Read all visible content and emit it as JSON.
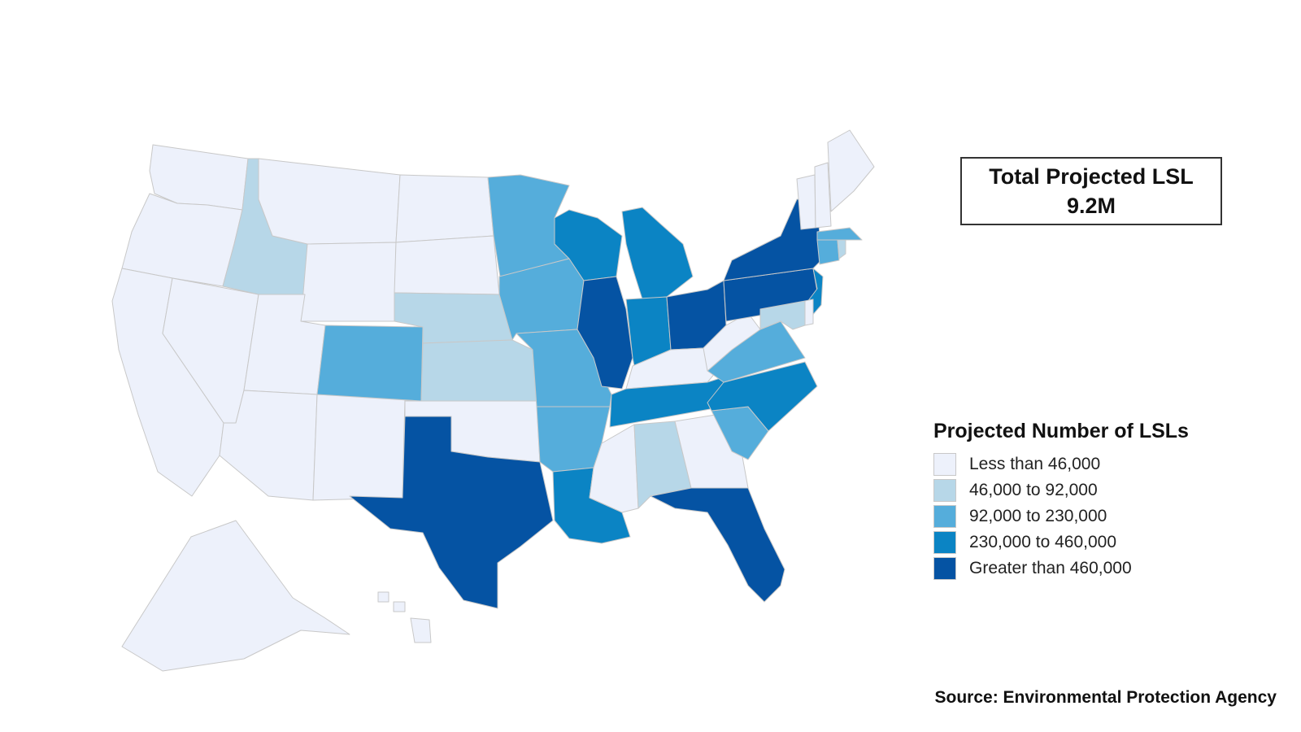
{
  "total_box": {
    "line1": "Total Projected LSL",
    "line2": "9.2M"
  },
  "legend": {
    "title": "Projected Number of LSLs",
    "items": [
      {
        "label": "Less than 46,000",
        "color": "#edf1fb"
      },
      {
        "label": "46,000 to 92,000",
        "color": "#b7d7e8"
      },
      {
        "label": "92,000 to 230,000",
        "color": "#55addb"
      },
      {
        "label": "230,000 to 460,000",
        "color": "#0b84c4"
      },
      {
        "label": "Greater than 460,000",
        "color": "#0553a3"
      }
    ]
  },
  "source": "Source: Environmental Protection Agency",
  "map_data": {
    "metric": "Projected Number of LSLs",
    "states": [
      {
        "state": "WA",
        "class": 0
      },
      {
        "state": "OR",
        "class": 0
      },
      {
        "state": "CA",
        "class": 0
      },
      {
        "state": "NV",
        "class": 0
      },
      {
        "state": "ID",
        "class": 1
      },
      {
        "state": "MT",
        "class": 0
      },
      {
        "state": "WY",
        "class": 0
      },
      {
        "state": "UT",
        "class": 0
      },
      {
        "state": "AZ",
        "class": 0
      },
      {
        "state": "NM",
        "class": 0
      },
      {
        "state": "CO",
        "class": 2
      },
      {
        "state": "ND",
        "class": 0
      },
      {
        "state": "SD",
        "class": 0
      },
      {
        "state": "NE",
        "class": 1
      },
      {
        "state": "KS",
        "class": 1
      },
      {
        "state": "OK",
        "class": 0
      },
      {
        "state": "TX",
        "class": 4
      },
      {
        "state": "MN",
        "class": 2
      },
      {
        "state": "IA",
        "class": 2
      },
      {
        "state": "MO",
        "class": 2
      },
      {
        "state": "AR",
        "class": 2
      },
      {
        "state": "LA",
        "class": 3
      },
      {
        "state": "WI",
        "class": 3
      },
      {
        "state": "IL",
        "class": 4
      },
      {
        "state": "MI",
        "class": 3
      },
      {
        "state": "IN",
        "class": 3
      },
      {
        "state": "OH",
        "class": 4
      },
      {
        "state": "KY",
        "class": 0
      },
      {
        "state": "TN",
        "class": 3
      },
      {
        "state": "MS",
        "class": 0
      },
      {
        "state": "AL",
        "class": 1
      },
      {
        "state": "GA",
        "class": 0
      },
      {
        "state": "FL",
        "class": 4
      },
      {
        "state": "SC",
        "class": 2
      },
      {
        "state": "NC",
        "class": 3
      },
      {
        "state": "VA",
        "class": 2
      },
      {
        "state": "WV",
        "class": 0
      },
      {
        "state": "PA",
        "class": 4
      },
      {
        "state": "NY",
        "class": 4
      },
      {
        "state": "NJ",
        "class": 3
      },
      {
        "state": "MD",
        "class": 1
      },
      {
        "state": "DE",
        "class": 0
      },
      {
        "state": "CT",
        "class": 2
      },
      {
        "state": "RI",
        "class": 1
      },
      {
        "state": "MA",
        "class": 2
      },
      {
        "state": "VT",
        "class": 0
      },
      {
        "state": "NH",
        "class": 0
      },
      {
        "state": "ME",
        "class": 0
      },
      {
        "state": "AK",
        "class": 0
      },
      {
        "state": "HI",
        "class": 0
      }
    ]
  }
}
